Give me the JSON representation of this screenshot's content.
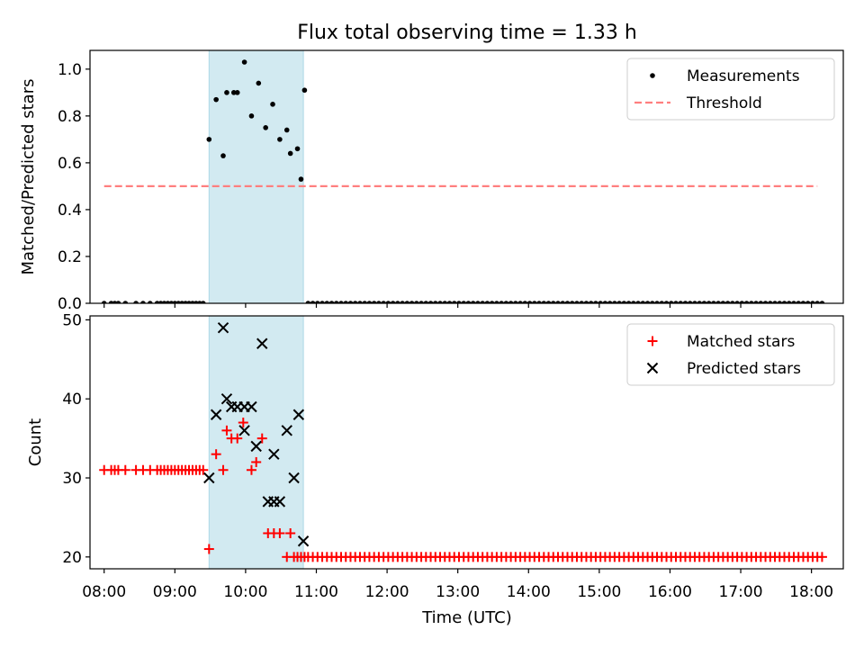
{
  "title": "Flux total observing time = 1.33 h",
  "xlabel": "Time (UTC)",
  "chart_data": [
    {
      "type": "scatter",
      "ylabel": "Matched/Predicted stars",
      "ylim": [
        0,
        1.08
      ],
      "yticks": [
        "0.0",
        "0.2",
        "0.4",
        "0.6",
        "0.8",
        "1.0"
      ],
      "xlim": [
        "07:48",
        "18:27"
      ],
      "xticks": [
        "08:00",
        "09:00",
        "10:00",
        "11:00",
        "12:00",
        "13:00",
        "14:00",
        "15:00",
        "16:00",
        "17:00",
        "18:00"
      ],
      "shaded_interval": [
        "09:29",
        "10:49"
      ],
      "shade_color": "#add8e6",
      "legend_position": "upper right",
      "legend": [
        "Measurements",
        "Threshold"
      ],
      "threshold": {
        "name": "Threshold",
        "value": 0.5,
        "x_range": [
          "08:00",
          "18:05"
        ],
        "color": "#ff7f7f",
        "style": "dashed"
      },
      "series": [
        {
          "name": "Measurements",
          "color": "#000000",
          "marker": "dot",
          "points": [
            [
              "09:29",
              0.7
            ],
            [
              "09:35",
              0.87
            ],
            [
              "09:41",
              0.63
            ],
            [
              "09:44",
              0.9
            ],
            [
              "09:50",
              0.9
            ],
            [
              "09:53",
              0.9
            ],
            [
              "09:59",
              1.03
            ],
            [
              "10:05",
              0.8
            ],
            [
              "10:11",
              0.94
            ],
            [
              "10:17",
              0.75
            ],
            [
              "10:23",
              0.85
            ],
            [
              "10:29",
              0.7
            ],
            [
              "10:35",
              0.74
            ],
            [
              "10:38",
              0.64
            ],
            [
              "10:44",
              0.66
            ],
            [
              "10:47",
              0.53
            ],
            [
              "10:50",
              0.91
            ]
          ],
          "zero_points": {
            "note": "y = 0 at every listed time",
            "times": [
              "08:00",
              "08:06",
              "08:09",
              "08:12",
              "08:18",
              "08:27",
              "08:33",
              "08:39",
              "08:45",
              "08:48",
              "08:51",
              "08:54",
              "08:57",
              "09:00",
              "09:03",
              "09:06",
              "09:09",
              "09:12",
              "09:15",
              "09:18",
              "09:21",
              "09:24",
              "10:53",
              "10:57",
              "11:01",
              "11:05",
              "11:09",
              "11:13",
              "11:17",
              "11:21",
              "11:25",
              "11:29",
              "11:33",
              "11:37",
              "11:41",
              "11:45",
              "11:49",
              "11:53",
              "11:57",
              "12:01",
              "12:05",
              "12:09",
              "12:13",
              "12:17",
              "12:21",
              "12:25",
              "12:29",
              "12:33",
              "12:37",
              "12:41",
              "12:45",
              "12:49",
              "12:53",
              "12:57",
              "13:01",
              "13:05",
              "13:09",
              "13:13",
              "13:17",
              "13:21",
              "13:25",
              "13:29",
              "13:33",
              "13:37",
              "13:41",
              "13:45",
              "13:49",
              "13:53",
              "13:57",
              "14:01",
              "14:05",
              "14:09",
              "14:13",
              "14:17",
              "14:21",
              "14:25",
              "14:29",
              "14:33",
              "14:37",
              "14:41",
              "14:45",
              "14:49",
              "14:53",
              "14:57",
              "15:01",
              "15:05",
              "15:09",
              "15:13",
              "15:17",
              "15:21",
              "15:25",
              "15:29",
              "15:33",
              "15:37",
              "15:41",
              "15:45",
              "15:49",
              "15:53",
              "15:57",
              "16:01",
              "16:05",
              "16:09",
              "16:13",
              "16:17",
              "16:21",
              "16:25",
              "16:29",
              "16:33",
              "16:37",
              "16:41",
              "16:45",
              "16:49",
              "16:53",
              "16:57",
              "17:01",
              "17:05",
              "17:09",
              "17:13",
              "17:17",
              "17:21",
              "17:25",
              "17:29",
              "17:33",
              "17:37",
              "17:41",
              "17:45",
              "17:49",
              "17:53",
              "17:57",
              "18:01",
              "18:05",
              "18:09"
            ]
          }
        }
      ]
    },
    {
      "type": "scatter",
      "ylabel": "Count",
      "ylim": [
        18.5,
        50.5
      ],
      "yticks": [
        "20",
        "30",
        "40",
        "50"
      ],
      "xlim": [
        "07:48",
        "18:27"
      ],
      "xticks": [
        "08:00",
        "09:00",
        "10:00",
        "11:00",
        "12:00",
        "13:00",
        "14:00",
        "15:00",
        "16:00",
        "17:00",
        "18:00"
      ],
      "shaded_interval": [
        "09:29",
        "10:49"
      ],
      "shade_color": "#add8e6",
      "legend_position": "upper right",
      "legend": [
        "Matched stars",
        "Predicted stars"
      ],
      "series": [
        {
          "name": "Matched stars",
          "color": "#ff0000",
          "marker": "plus",
          "points": [
            [
              "08:00",
              31
            ],
            [
              "08:06",
              31
            ],
            [
              "08:09",
              31
            ],
            [
              "08:12",
              31
            ],
            [
              "08:18",
              31
            ],
            [
              "08:27",
              31
            ],
            [
              "08:33",
              31
            ],
            [
              "08:39",
              31
            ],
            [
              "08:45",
              31
            ],
            [
              "08:48",
              31
            ],
            [
              "08:51",
              31
            ],
            [
              "08:54",
              31
            ],
            [
              "08:57",
              31
            ],
            [
              "09:00",
              31
            ],
            [
              "09:03",
              31
            ],
            [
              "09:06",
              31
            ],
            [
              "09:09",
              31
            ],
            [
              "09:12",
              31
            ],
            [
              "09:15",
              31
            ],
            [
              "09:18",
              31
            ],
            [
              "09:21",
              31
            ],
            [
              "09:24",
              31
            ],
            [
              "09:29",
              21
            ],
            [
              "09:35",
              33
            ],
            [
              "09:41",
              31
            ],
            [
              "09:44",
              36
            ],
            [
              "09:48",
              35
            ],
            [
              "09:53",
              35
            ],
            [
              "09:58",
              37
            ],
            [
              "10:05",
              31
            ],
            [
              "10:09",
              32
            ],
            [
              "10:14",
              35
            ],
            [
              "10:19",
              23
            ],
            [
              "10:24",
              23
            ],
            [
              "10:29",
              23
            ],
            [
              "10:35",
              20
            ],
            [
              "10:38",
              23
            ]
          ],
          "constant_run": {
            "y": 20,
            "times": [
              "10:41",
              "10:44",
              "10:47",
              "10:50",
              "10:53",
              "10:57",
              "11:01",
              "11:05",
              "11:09",
              "11:13",
              "11:17",
              "11:21",
              "11:25",
              "11:29",
              "11:33",
              "11:37",
              "11:41",
              "11:45",
              "11:49",
              "11:53",
              "11:57",
              "12:01",
              "12:05",
              "12:09",
              "12:13",
              "12:17",
              "12:21",
              "12:25",
              "12:29",
              "12:33",
              "12:37",
              "12:41",
              "12:45",
              "12:49",
              "12:53",
              "12:57",
              "13:01",
              "13:05",
              "13:09",
              "13:13",
              "13:17",
              "13:21",
              "13:25",
              "13:29",
              "13:33",
              "13:37",
              "13:41",
              "13:45",
              "13:49",
              "13:53",
              "13:57",
              "14:01",
              "14:05",
              "14:09",
              "14:13",
              "14:17",
              "14:21",
              "14:25",
              "14:29",
              "14:33",
              "14:37",
              "14:41",
              "14:45",
              "14:49",
              "14:53",
              "14:57",
              "15:01",
              "15:05",
              "15:09",
              "15:13",
              "15:17",
              "15:21",
              "15:25",
              "15:29",
              "15:33",
              "15:37",
              "15:41",
              "15:45",
              "15:49",
              "15:53",
              "15:57",
              "16:01",
              "16:05",
              "16:09",
              "16:13",
              "16:17",
              "16:21",
              "16:25",
              "16:29",
              "16:33",
              "16:37",
              "16:41",
              "16:45",
              "16:49",
              "16:53",
              "16:57",
              "17:01",
              "17:05",
              "17:09",
              "17:13",
              "17:17",
              "17:21",
              "17:25",
              "17:29",
              "17:33",
              "17:37",
              "17:41",
              "17:45",
              "17:49",
              "17:53",
              "17:57",
              "18:01",
              "18:05",
              "18:09"
            ]
          }
        },
        {
          "name": "Predicted stars",
          "color": "#000000",
          "marker": "x",
          "points": [
            [
              "09:29",
              30
            ],
            [
              "09:35",
              38
            ],
            [
              "09:41",
              49
            ],
            [
              "09:44",
              40
            ],
            [
              "09:48",
              39
            ],
            [
              "09:53",
              39
            ],
            [
              "09:59",
              36
            ],
            [
              "09:59",
              39
            ],
            [
              "10:05",
              39
            ],
            [
              "10:09",
              34
            ],
            [
              "10:14",
              47
            ],
            [
              "10:19",
              27
            ],
            [
              "10:24",
              27
            ],
            [
              "10:24",
              33
            ],
            [
              "10:29",
              27
            ],
            [
              "10:35",
              36
            ],
            [
              "10:41",
              30
            ],
            [
              "10:45",
              38
            ],
            [
              "10:49",
              22
            ]
          ]
        }
      ]
    }
  ]
}
